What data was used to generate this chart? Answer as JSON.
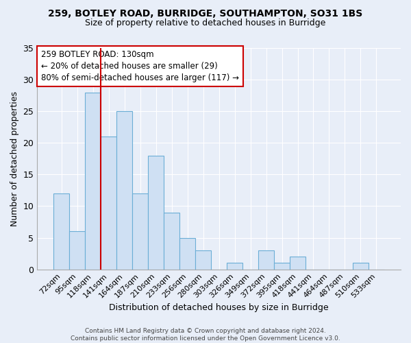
{
  "title1": "259, BOTLEY ROAD, BURRIDGE, SOUTHAMPTON, SO31 1BS",
  "title2": "Size of property relative to detached houses in Burridge",
  "xlabel": "Distribution of detached houses by size in Burridge",
  "ylabel": "Number of detached properties",
  "categories": [
    "72sqm",
    "95sqm",
    "118sqm",
    "141sqm",
    "164sqm",
    "187sqm",
    "210sqm",
    "233sqm",
    "256sqm",
    "280sqm",
    "303sqm",
    "326sqm",
    "349sqm",
    "372sqm",
    "395sqm",
    "418sqm",
    "441sqm",
    "464sqm",
    "487sqm",
    "510sqm",
    "533sqm"
  ],
  "values": [
    12,
    6,
    28,
    21,
    25,
    12,
    18,
    9,
    5,
    3,
    0,
    1,
    0,
    3,
    1,
    2,
    0,
    0,
    0,
    1,
    0
  ],
  "bar_color": "#cfe0f3",
  "bar_edge_color": "#6baed6",
  "red_line_index": 2,
  "annotation_line1": "259 BOTLEY ROAD: 130sqm",
  "annotation_line2": "← 20% of detached houses are smaller (29)",
  "annotation_line3": "80% of semi-detached houses are larger (117) →",
  "annotation_box_color": "#ffffff",
  "annotation_box_edge": "#cc0000",
  "ylim": [
    0,
    35
  ],
  "yticks": [
    0,
    5,
    10,
    15,
    20,
    25,
    30,
    35
  ],
  "footer_text": "Contains HM Land Registry data © Crown copyright and database right 2024.\nContains public sector information licensed under the Open Government Licence v3.0.",
  "bg_color": "#e8eef8",
  "plot_bg_color": "#e8eef8",
  "title1_fontsize": 10,
  "title2_fontsize": 9
}
